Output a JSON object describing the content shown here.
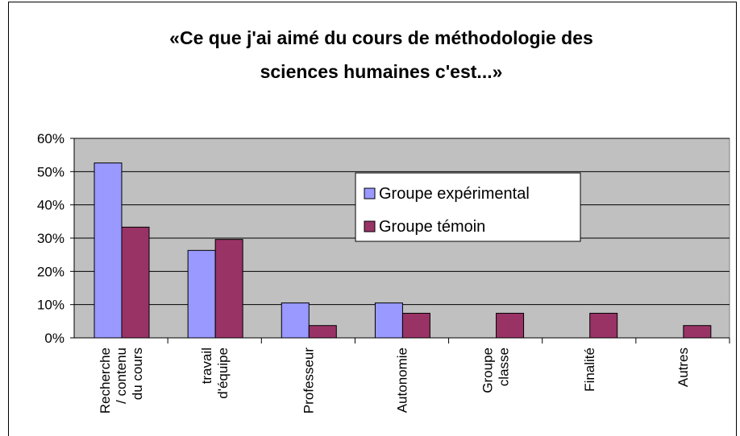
{
  "chart_data": {
    "type": "bar",
    "title": "«Ce que j'ai aimé du cours de méthodologie des\nsciences humaines c'est...»",
    "categories": [
      "Recherche\n/ contenu\ndu cours",
      "travail\nd'équipe",
      "Professeur",
      "Autonomie",
      "Groupe\nclasse",
      "Finalité",
      "Autres"
    ],
    "series": [
      {
        "name": "Groupe expérimental",
        "color": "#9999ff",
        "values": [
          52.6,
          26.3,
          10.5,
          10.5,
          0,
          0,
          0
        ]
      },
      {
        "name": "Groupe témoin",
        "color": "#993366",
        "values": [
          33.3,
          29.6,
          3.7,
          7.4,
          7.4,
          7.4,
          3.7
        ]
      }
    ],
    "ylim": [
      0,
      60
    ],
    "yticks": [
      {
        "value": 0,
        "label": "0%"
      },
      {
        "value": 10,
        "label": "10%"
      },
      {
        "value": 20,
        "label": "20%"
      },
      {
        "value": 30,
        "label": "30%"
      },
      {
        "value": 40,
        "label": "40%"
      },
      {
        "value": 50,
        "label": "50%"
      },
      {
        "value": 60,
        "label": "60%"
      }
    ],
    "grid": true,
    "legend": "upper right"
  }
}
